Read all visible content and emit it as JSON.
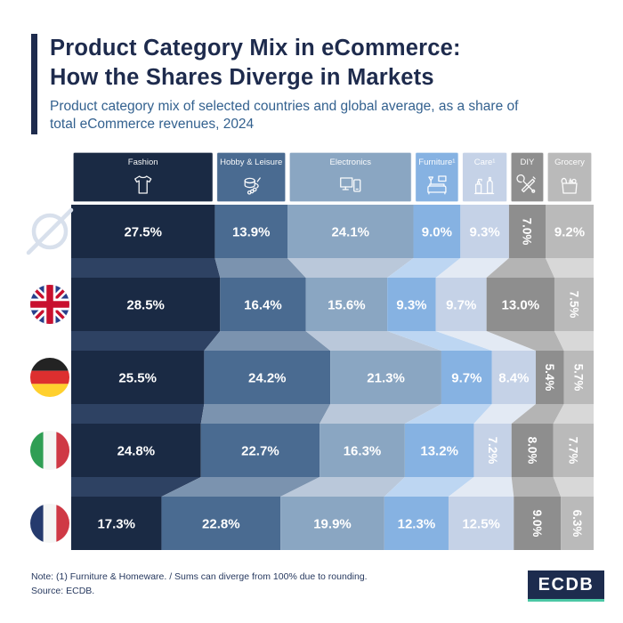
{
  "header": {
    "title_lines": [
      "Product Category Mix in eCommerce:",
      "How the Shares Diverge in Markets"
    ],
    "subtitle": "Product category mix of selected countries and global average, as a share of total eCommerce revenues, 2024"
  },
  "chart_data": {
    "type": "bar",
    "subtype": "100%-stacked-bar-flow (alluvial)",
    "title": "Product Category Mix in eCommerce: How the Shares Diverge in Markets",
    "unit": "%",
    "value_format": "one-decimal-percent",
    "legend_position": "top (category header boxes with icons)",
    "grid": false,
    "categories": [
      {
        "label": "Fashion",
        "icon": "tshirt-icon",
        "color": "#1a2a44",
        "color_light": "#2e4263"
      },
      {
        "label": "Hobby & Leisure",
        "icon": "yarn-icon",
        "color": "#4a6b91",
        "color_light": "#7b93af"
      },
      {
        "label": "Electronics",
        "icon": "devices-icon",
        "color": "#8aa6c2",
        "color_light": "#bac8da"
      },
      {
        "label": "Furniture¹",
        "icon": "sofa-icon",
        "color": "#86b2e2",
        "color_light": "#bdd6f2"
      },
      {
        "label": "Care¹",
        "icon": "bottles-icon",
        "color": "#c5d2e7",
        "color_light": "#e3eaf4"
      },
      {
        "label": "DIY",
        "icon": "tools-icon",
        "color": "#8e8e8e",
        "color_light": "#b4b4b4"
      },
      {
        "label": "Grocery",
        "icon": "grocery-bag-icon",
        "color": "#bababa",
        "color_light": "#d8d8d8"
      }
    ],
    "rows": [
      {
        "label": "Global average",
        "icon": "global-average-icon",
        "values": [
          27.5,
          13.9,
          24.1,
          9.0,
          9.3,
          7.0,
          9.2
        ],
        "rotated": [
          0,
          0,
          0,
          0,
          0,
          1,
          0
        ]
      },
      {
        "label": "United Kingdom",
        "icon": "flag-uk-icon",
        "values": [
          28.5,
          16.4,
          15.6,
          9.3,
          9.7,
          13.0,
          7.5
        ],
        "rotated": [
          0,
          0,
          0,
          0,
          0,
          0,
          1
        ]
      },
      {
        "label": "Germany",
        "icon": "flag-germany-icon",
        "values": [
          25.5,
          24.2,
          21.3,
          9.7,
          8.4,
          5.4,
          5.7
        ],
        "rotated": [
          0,
          0,
          0,
          0,
          0,
          1,
          1
        ]
      },
      {
        "label": "Italy",
        "icon": "flag-italy-icon",
        "values": [
          24.8,
          22.7,
          16.3,
          13.2,
          7.2,
          8.0,
          7.7
        ],
        "rotated": [
          0,
          0,
          0,
          0,
          1,
          1,
          1
        ]
      },
      {
        "label": "France",
        "icon": "flag-france-icon",
        "values": [
          17.3,
          22.8,
          19.9,
          12.3,
          12.5,
          9.0,
          6.3
        ],
        "rotated": [
          0,
          0,
          0,
          0,
          0,
          1,
          1
        ]
      }
    ]
  },
  "footer": {
    "note": "Note: (1) Furniture & Homeware. / Sums can diverge from 100% due to rounding.",
    "source": "Source: ECDB.",
    "logo_text": "ECDB"
  },
  "colors": {
    "title": "#1e2b4d",
    "subtitle": "#33618f",
    "value_label": "#ffffff",
    "global_symbol": "#d8e0ec",
    "logo_bg": "#1d2c4e",
    "logo_accent_teal": "#4bc7a5"
  }
}
